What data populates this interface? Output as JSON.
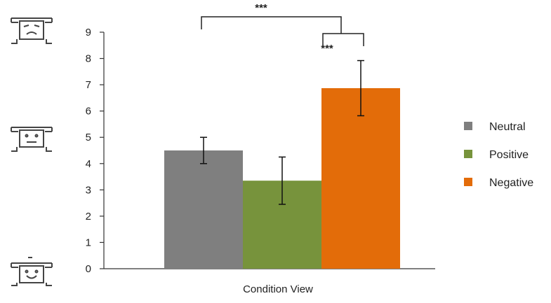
{
  "chart_data": {
    "type": "bar",
    "categories": [
      "Condition View"
    ],
    "xlabel": "Condition View",
    "ylabel": "",
    "ylim": [
      0,
      9
    ],
    "yticks": [
      0,
      1,
      2,
      3,
      4,
      5,
      6,
      7,
      8,
      9
    ],
    "series": [
      {
        "name": "Neutral",
        "values": [
          4.5
        ],
        "error": [
          0.5
        ],
        "color": "#7f7f7f"
      },
      {
        "name": "Positive",
        "values": [
          3.35
        ],
        "error": [
          0.9
        ],
        "color": "#77933c"
      },
      {
        "name": "Negative",
        "values": [
          6.87
        ],
        "error": [
          1.05
        ],
        "color": "#e36c09"
      }
    ],
    "legend_position": "right",
    "grid": false,
    "significance": [
      {
        "label": "***",
        "from": "Neutral",
        "to": "Positive/Negative bracket"
      },
      {
        "label": "***",
        "from": "Positive",
        "to": "Negative"
      }
    ],
    "axis_icons": [
      "sad-face-icon",
      "neutral-face-icon",
      "happy-face-icon"
    ]
  }
}
